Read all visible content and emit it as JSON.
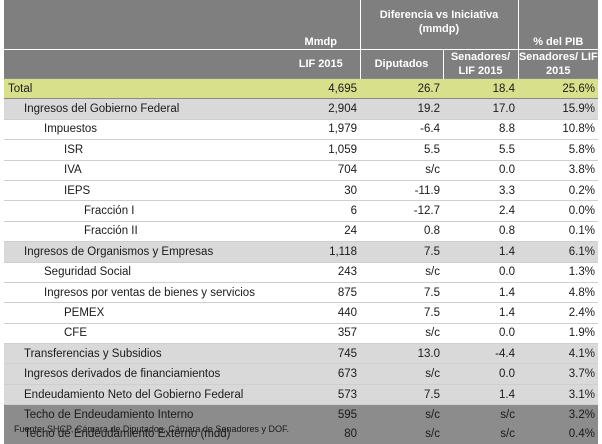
{
  "header": {
    "col_mmdp": "Mmdp",
    "col_lif": "LIF 2015",
    "col_diff": "Diferencia vs Iniciativa (mmdp)",
    "col_diputados": "Diputados",
    "col_senadores": "Senadores/ LIF 2015",
    "col_pib_top": "% del PIB",
    "col_pib_sub": "Senadores/ LIF 2015"
  },
  "rows": [
    {
      "label": "Total",
      "lif": "4,695",
      "dip": "26.7",
      "sen": "18.4",
      "pib": "25.6%"
    },
    {
      "label": "Ingresos del Gobierno Federal",
      "lif": "2,904",
      "dip": "19.2",
      "sen": "17.0",
      "pib": "15.9%"
    },
    {
      "label": "Impuestos",
      "lif": "1,979",
      "dip": "-6.4",
      "sen": "8.8",
      "pib": "10.8%"
    },
    {
      "label": "ISR",
      "lif": "1,059",
      "dip": "5.5",
      "sen": "5.5",
      "pib": "5.8%"
    },
    {
      "label": "IVA",
      "lif": "704",
      "dip": "s/c",
      "sen": "0.0",
      "pib": "3.8%"
    },
    {
      "label": "IEPS",
      "lif": "30",
      "dip": "-11.9",
      "sen": "3.3",
      "pib": "0.2%"
    },
    {
      "label": "Fracción I",
      "lif": "6",
      "dip": "-12.7",
      "sen": "2.4",
      "pib": "0.0%"
    },
    {
      "label": "Fracción II",
      "lif": "24",
      "dip": "0.8",
      "sen": "0.8",
      "pib": "0.1%"
    },
    {
      "label": "Ingresos de Organismos y Empresas",
      "lif": "1,118",
      "dip": "7.5",
      "sen": "1.4",
      "pib": "6.1%"
    },
    {
      "label": "Seguridad Social",
      "lif": "243",
      "dip": "s/c",
      "sen": "0.0",
      "pib": "1.3%"
    },
    {
      "label": "Ingresos por ventas de bienes y servicios",
      "lif": "875",
      "dip": "7.5",
      "sen": "1.4",
      "pib": "4.8%"
    },
    {
      "label": "PEMEX",
      "lif": "440",
      "dip": "7.5",
      "sen": "1.4",
      "pib": "2.4%"
    },
    {
      "label": "CFE",
      "lif": "357",
      "dip": "s/c",
      "sen": "0.0",
      "pib": "1.9%"
    },
    {
      "label": "Transferencias y Subsidios",
      "lif": "745",
      "dip": "13.0",
      "sen": "-4.4",
      "pib": "4.1%"
    },
    {
      "label": "Ingresos derivados de financiamientos",
      "lif": "673",
      "dip": "s/c",
      "sen": "0.0",
      "pib": "3.7%"
    },
    {
      "label": "Endeudamiento Neto del Gobierno Federal",
      "lif": "573",
      "dip": "7.5",
      "sen": "1.4",
      "pib": "3.1%"
    },
    {
      "label": "Techo de Endeudamiento Interno",
      "lif": "595",
      "dip": "s/c",
      "sen": "s/c",
      "pib": "3.2%"
    },
    {
      "label": "Techo de Endeudamiento Externo (mdd)",
      "lif": "80",
      "dip": "s/c",
      "sen": "s/c",
      "pib": "0.4%"
    }
  ],
  "source": "Fuente: SHCP, Cámara de Diputados, Cámara de Senadores y DOF."
}
